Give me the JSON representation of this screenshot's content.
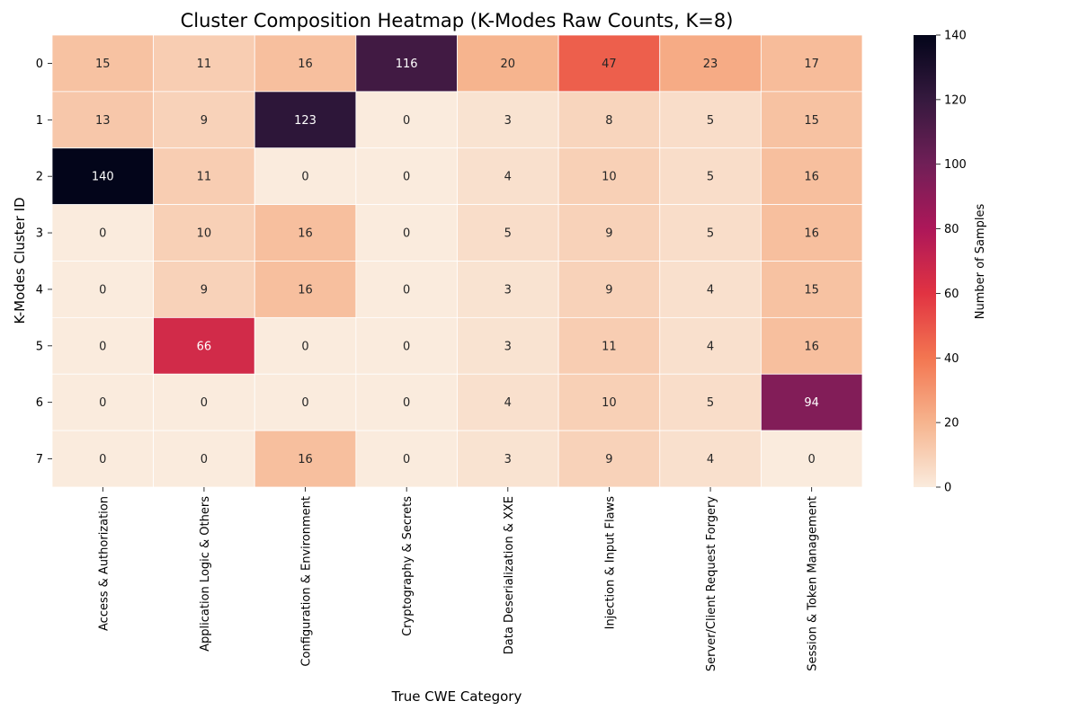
{
  "chart_data": {
    "type": "heatmap",
    "title": "Cluster Composition Heatmap (K-Modes Raw Counts, K=8)",
    "xlabel": "True CWE Category",
    "ylabel": "K-Modes Cluster ID",
    "colorbar_label": "Number of Samples",
    "x_categories": [
      "Access & Authorization",
      "Application Logic & Others",
      "Configuration & Environment",
      "Cryptography & Secrets",
      "Data Deserialization & XXE",
      "Injection & Input Flaws",
      "Server/Client Request Forgery",
      "Session & Token Management"
    ],
    "y_categories": [
      "0",
      "1",
      "2",
      "3",
      "4",
      "5",
      "6",
      "7"
    ],
    "values": [
      [
        15,
        11,
        16,
        116,
        20,
        47,
        23,
        17
      ],
      [
        13,
        9,
        123,
        0,
        3,
        8,
        5,
        15
      ],
      [
        140,
        11,
        0,
        0,
        4,
        10,
        5,
        16
      ],
      [
        0,
        10,
        16,
        0,
        5,
        9,
        5,
        16
      ],
      [
        0,
        9,
        16,
        0,
        3,
        9,
        4,
        15
      ],
      [
        0,
        66,
        0,
        0,
        3,
        11,
        4,
        16
      ],
      [
        0,
        0,
        0,
        0,
        4,
        10,
        5,
        94
      ],
      [
        0,
        0,
        16,
        0,
        3,
        9,
        4,
        0
      ]
    ],
    "vmin": 0,
    "vmax": 140,
    "colorbar_ticks": [
      0,
      20,
      40,
      60,
      80,
      100,
      120,
      140
    ],
    "colormap": [
      "#faebdd",
      "#f6b48e",
      "#f37651",
      "#e13342",
      "#ad1759",
      "#701f57",
      "#35193e",
      "#03051a"
    ],
    "grid": false
  }
}
